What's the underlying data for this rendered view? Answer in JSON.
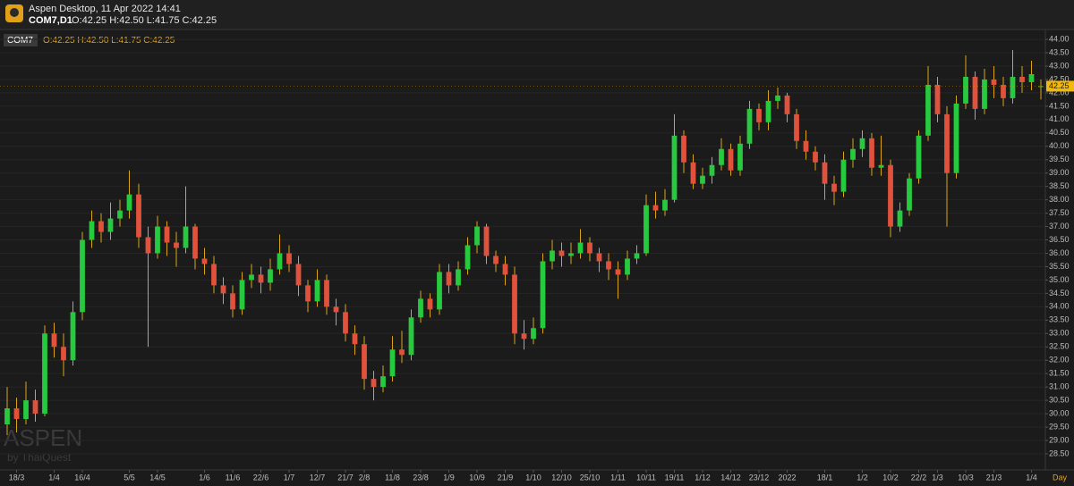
{
  "window": {
    "title": "Aspen Desktop, 11 Apr 2022 14:41",
    "symbol": "COM7,D1",
    "ohlc": "O:42.25 H:42.50 L:41.75 C:42.25"
  },
  "watermark": {
    "brand": "ASPEN",
    "by": "by ThaiQuest"
  },
  "chart_data": {
    "type": "candlestick",
    "symbol": "COM7",
    "ohlc_text": "O:42.25 H:42.50 L:41.75 C:42.25",
    "x_unit": "Day",
    "up_color": "#27c93f",
    "down_color": "#e0523c",
    "wick_color": "#d9a514",
    "grid": true,
    "categories": [
      null,
      "18/3",
      null,
      null,
      null,
      "1/4",
      null,
      null,
      "16/4",
      null,
      null,
      null,
      null,
      "5/5",
      null,
      null,
      "14/5",
      null,
      null,
      null,
      null,
      "1/6",
      null,
      null,
      "11/6",
      null,
      null,
      "22/6",
      null,
      null,
      "1/7",
      null,
      null,
      "12/7",
      null,
      null,
      "21/7",
      null,
      "2/8",
      null,
      null,
      "11/8",
      null,
      null,
      "23/8",
      null,
      null,
      "1/9",
      null,
      null,
      "10/9",
      null,
      null,
      "21/9",
      null,
      null,
      "1/10",
      null,
      null,
      "12/10",
      null,
      null,
      "25/10",
      null,
      null,
      "1/11",
      null,
      null,
      "10/11",
      null,
      null,
      "19/11",
      null,
      null,
      "1/12",
      null,
      null,
      "14/12",
      null,
      null,
      "23/12",
      null,
      null,
      "2022",
      null,
      null,
      null,
      "18/1",
      null,
      null,
      null,
      "1/2",
      null,
      null,
      "10/2",
      null,
      null,
      "22/2",
      null,
      "1/3",
      null,
      null,
      "10/3",
      null,
      null,
      "21/3",
      null,
      null,
      null,
      "1/4",
      null
    ],
    "open": [
      29.6,
      30.2,
      29.8,
      30.5,
      30.0,
      33.0,
      32.5,
      32.0,
      33.8,
      36.5,
      37.2,
      36.8,
      37.3,
      37.6,
      38.2,
      36.6,
      36.0,
      37.0,
      36.4,
      36.2,
      37.0,
      35.8,
      35.6,
      34.8,
      34.5,
      33.9,
      35.0,
      35.2,
      34.9,
      35.4,
      36.0,
      35.6,
      34.8,
      34.2,
      35.0,
      34.0,
      33.8,
      33.0,
      32.6,
      31.3,
      31.0,
      31.4,
      32.4,
      32.2,
      33.6,
      34.3,
      33.9,
      35.3,
      34.8,
      35.4,
      36.3,
      37.0,
      35.9,
      35.6,
      35.2,
      33.0,
      32.8,
      33.2,
      35.7,
      36.1,
      35.9,
      36.0,
      36.4,
      36.0,
      35.7,
      35.4,
      35.2,
      35.8,
      36.0,
      37.8,
      37.6,
      38.0,
      40.4,
      39.4,
      38.6,
      38.9,
      39.3,
      39.9,
      39.1,
      40.1,
      41.4,
      40.9,
      41.7,
      41.9,
      41.2,
      40.2,
      39.8,
      39.4,
      38.6,
      38.3,
      39.5,
      39.9,
      40.3,
      39.2,
      39.3,
      37.0,
      37.6,
      38.8,
      40.4,
      42.3,
      41.2,
      39.0,
      41.6,
      42.6,
      41.4,
      42.5,
      42.3,
      41.8,
      42.6,
      42.4,
      42.25
    ],
    "high": [
      31.0,
      30.6,
      31.2,
      30.9,
      33.3,
      33.4,
      33.0,
      34.2,
      36.8,
      37.6,
      37.5,
      37.9,
      38.0,
      39.1,
      38.6,
      37.0,
      37.4,
      37.2,
      36.8,
      38.5,
      37.1,
      36.2,
      35.9,
      35.1,
      34.8,
      35.3,
      35.6,
      35.5,
      35.8,
      36.7,
      36.3,
      35.9,
      35.0,
      35.4,
      35.2,
      34.3,
      34.1,
      33.3,
      32.9,
      31.6,
      31.8,
      32.9,
      33.1,
      33.9,
      34.6,
      34.5,
      35.6,
      35.6,
      35.7,
      36.6,
      37.2,
      37.1,
      36.1,
      35.9,
      35.5,
      33.5,
      33.6,
      36.0,
      36.5,
      36.4,
      36.4,
      36.9,
      36.6,
      36.2,
      36.0,
      35.7,
      36.1,
      36.3,
      38.2,
      38.3,
      38.4,
      41.2,
      40.6,
      39.7,
      39.2,
      39.6,
      40.3,
      40.1,
      40.4,
      41.7,
      41.6,
      42.1,
      42.2,
      42.0,
      41.4,
      40.6,
      40.0,
      39.7,
      38.9,
      39.8,
      40.3,
      40.6,
      40.5,
      40.4,
      39.5,
      37.9,
      39.0,
      40.6,
      43.0,
      42.6,
      41.5,
      41.9,
      43.4,
      42.8,
      42.9,
      43.0,
      42.6,
      43.6,
      43.0,
      43.2,
      42.5
    ],
    "low": [
      29.2,
      29.3,
      29.6,
      29.7,
      29.9,
      32.1,
      31.4,
      31.8,
      33.5,
      36.2,
      36.4,
      36.5,
      37.0,
      37.3,
      36.2,
      32.5,
      35.8,
      35.9,
      35.5,
      36.0,
      35.4,
      35.2,
      34.5,
      34.1,
      33.6,
      33.7,
      34.7,
      34.5,
      34.6,
      35.2,
      35.3,
      34.4,
      33.8,
      34.0,
      33.7,
      33.3,
      32.7,
      32.2,
      30.9,
      30.5,
      30.8,
      31.2,
      31.9,
      32.0,
      33.4,
      33.6,
      33.7,
      34.5,
      34.6,
      35.2,
      36.0,
      35.6,
      35.3,
      34.8,
      32.6,
      32.4,
      32.6,
      33.0,
      35.4,
      35.5,
      35.6,
      35.8,
      35.7,
      35.3,
      35.0,
      34.3,
      35.0,
      35.6,
      35.9,
      37.3,
      37.4,
      37.9,
      39.0,
      38.4,
      38.4,
      38.6,
      39.1,
      38.9,
      38.9,
      39.9,
      40.6,
      40.6,
      41.4,
      40.9,
      39.9,
      39.5,
      39.1,
      38.0,
      37.8,
      38.1,
      39.2,
      39.6,
      38.9,
      38.9,
      36.6,
      36.8,
      37.4,
      38.6,
      40.2,
      40.9,
      37.0,
      38.8,
      41.4,
      41.0,
      41.2,
      41.8,
      41.5,
      41.6,
      42.0,
      42.1,
      41.75
    ],
    "close": [
      30.2,
      29.8,
      30.5,
      30.0,
      33.0,
      32.5,
      32.0,
      33.8,
      36.5,
      37.2,
      36.8,
      37.3,
      37.6,
      38.2,
      36.6,
      36.0,
      37.0,
      36.4,
      36.2,
      37.0,
      35.8,
      35.6,
      34.8,
      34.5,
      33.9,
      35.0,
      35.2,
      34.9,
      35.4,
      36.0,
      35.6,
      34.8,
      34.2,
      35.0,
      34.0,
      33.8,
      33.0,
      32.6,
      31.3,
      31.0,
      31.4,
      32.4,
      32.2,
      33.6,
      34.3,
      33.9,
      35.3,
      34.8,
      35.4,
      36.3,
      37.0,
      35.9,
      35.6,
      35.2,
      33.0,
      32.8,
      33.2,
      35.7,
      36.1,
      35.9,
      36.0,
      36.4,
      36.0,
      35.7,
      35.4,
      35.2,
      35.8,
      36.0,
      37.8,
      37.6,
      38.0,
      40.4,
      39.4,
      38.6,
      38.9,
      39.3,
      39.9,
      39.1,
      40.1,
      41.4,
      40.9,
      41.7,
      41.9,
      41.2,
      40.2,
      39.8,
      39.4,
      38.6,
      38.3,
      39.5,
      39.9,
      40.3,
      39.2,
      39.3,
      37.0,
      37.6,
      38.8,
      40.4,
      42.3,
      41.2,
      39.0,
      41.6,
      42.6,
      41.4,
      42.5,
      42.3,
      41.8,
      42.6,
      42.4,
      42.7,
      42.25
    ],
    "last_price": {
      "value": 42.25,
      "label": "42.25"
    },
    "ylim": [
      27.93,
      44.27
    ],
    "yticks": [
      {
        "value": 44,
        "label": "44.00"
      },
      {
        "value": 43.5,
        "label": "43.50"
      },
      {
        "value": 43,
        "label": "43.00"
      },
      {
        "value": 42.5,
        "label": "42.50"
      },
      {
        "value": 42,
        "label": "42.00"
      },
      {
        "value": 41.5,
        "label": "41.50"
      },
      {
        "value": 41,
        "label": "41.00"
      },
      {
        "value": 40.5,
        "label": "40.50"
      },
      {
        "value": 40,
        "label": "40.00"
      },
      {
        "value": 39.5,
        "label": "39.50"
      },
      {
        "value": 39,
        "label": "39.00"
      },
      {
        "value": 38.5,
        "label": "38.50"
      },
      {
        "value": 38,
        "label": "38.00"
      },
      {
        "value": 37.5,
        "label": "37.50"
      },
      {
        "value": 37,
        "label": "37.00"
      },
      {
        "value": 36.5,
        "label": "36.50"
      },
      {
        "value": 36,
        "label": "36.00"
      },
      {
        "value": 35.5,
        "label": "35.50"
      },
      {
        "value": 35,
        "label": "35.00"
      },
      {
        "value": 34.5,
        "label": "34.50"
      },
      {
        "value": 34,
        "label": "34.00"
      },
      {
        "value": 33.5,
        "label": "33.50"
      },
      {
        "value": 33,
        "label": "33.00"
      },
      {
        "value": 32.5,
        "label": "32.50"
      },
      {
        "value": 32,
        "label": "32.00"
      },
      {
        "value": 31.5,
        "label": "31.50"
      },
      {
        "value": 31,
        "label": "31.00"
      },
      {
        "value": 30.5,
        "label": "30.50"
      },
      {
        "value": 30,
        "label": "30.00"
      },
      {
        "value": 29.5,
        "label": "29.50"
      },
      {
        "value": 29,
        "label": "29.00"
      },
      {
        "value": 28.5,
        "label": "28.50"
      }
    ]
  }
}
